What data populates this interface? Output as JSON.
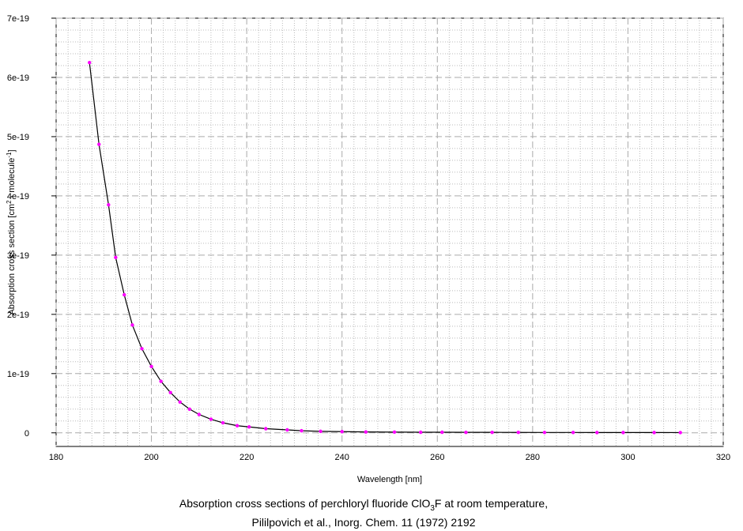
{
  "chart_data": {
    "type": "line",
    "xlabel": "Wavelength [nm]",
    "ylabel": [
      "Absorption cross section [cm",
      "2",
      " · molecule",
      "-1",
      "]"
    ],
    "caption": [
      [
        "Absorption cross sections of perchloryl fluoride ClO",
        "3",
        "F at room temperature,"
      ],
      [
        "Pililpovich et al., Inorg. Chem. 11 (1972) 2192"
      ]
    ],
    "x": [
      187,
      189,
      191,
      192.5,
      194.3,
      196,
      198,
      200,
      202,
      204,
      206,
      208,
      210,
      212.5,
      215,
      218,
      220.5,
      224,
      228.5,
      231.5,
      235.5,
      240,
      245,
      251,
      256.5,
      261,
      266,
      271.5,
      277,
      282.5,
      288.5,
      293.5,
      299,
      305.5,
      311
    ],
    "series": [
      {
        "name": "ClO3F",
        "color": "#ff00ff",
        "line_color": "#000000",
        "values": [
          6.25e-19,
          4.87e-19,
          3.85e-19,
          2.96e-19,
          2.33e-19,
          1.82e-19,
          1.42e-19,
          1.12e-19,
          8.7e-20,
          6.8e-20,
          5.2e-20,
          4e-20,
          3.1e-20,
          2.3e-20,
          1.7e-20,
          1.2e-20,
          1e-20,
          7e-21,
          5e-21,
          3.5e-21,
          2.5e-21,
          2e-21,
          1.5e-21,
          1.2e-21,
          1e-21,
          1e-21,
          8e-22,
          8e-22,
          7e-22,
          6e-22,
          6e-22,
          5e-22,
          5e-22,
          5e-22,
          4e-22
        ]
      }
    ],
    "xlim": [
      180,
      320
    ],
    "xticks": [
      180,
      200,
      220,
      240,
      260,
      280,
      300,
      320
    ],
    "ylim": [
      -2.3e-20,
      7e-19
    ],
    "yticks": [
      0,
      {
        "value": 1e-19,
        "label": "1e-19"
      },
      {
        "value": 2e-19,
        "label": "2e-19"
      },
      {
        "value": 3e-19,
        "label": "3e-19"
      },
      {
        "value": 4e-19,
        "label": "4e-19"
      },
      {
        "value": 5e-19,
        "label": "5e-19"
      },
      {
        "value": 6e-19,
        "label": "6e-19"
      },
      {
        "value": 7e-19,
        "label": "7e-19"
      }
    ],
    "grid": true
  }
}
